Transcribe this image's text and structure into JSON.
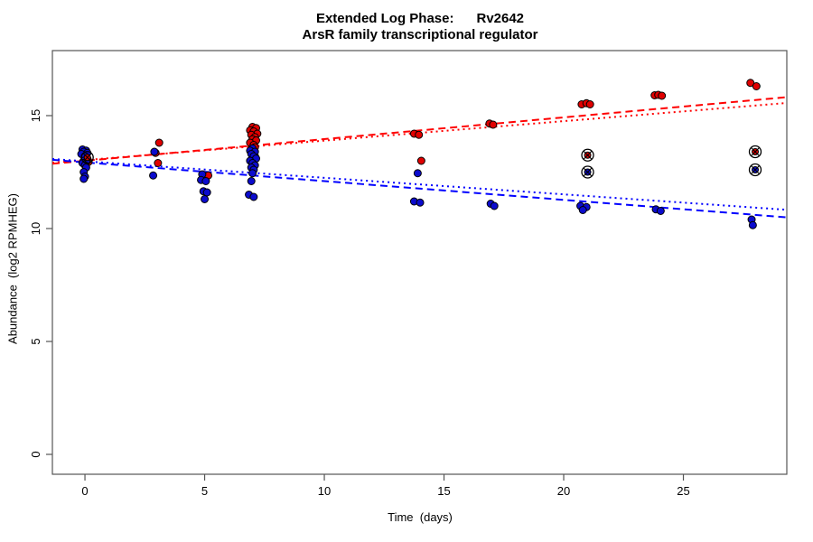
{
  "title": "Extended Log Phase:      Rv2642",
  "subtitle": "ArsR family transcriptional regulator",
  "chart_data": {
    "type": "scatter",
    "title": "Extended Log Phase:      Rv2642",
    "subtitle": "ArsR family transcriptional regulator",
    "xlabel": "Time  (days)",
    "ylabel": "Abundance  (log2 RPMHEG)",
    "xlim": [
      -1.36,
      29.32
    ],
    "ylim": [
      -0.88,
      17.88
    ],
    "x_ticks": [
      0,
      5,
      10,
      15,
      20,
      25
    ],
    "y_ticks": [
      0,
      5,
      10,
      15
    ],
    "grid": false,
    "legend": "none",
    "frame_color": "#555555",
    "series": [
      {
        "name": "red-condition",
        "color": "#e00000",
        "edge_color": "#000000",
        "points": [
          [
            0.05,
            13.1
          ],
          [
            0.15,
            12.95
          ],
          [
            3.1,
            13.8
          ],
          [
            2.95,
            13.35
          ],
          [
            3.05,
            12.9
          ],
          [
            5.15,
            12.35
          ],
          [
            7.0,
            14.5
          ],
          [
            7.15,
            14.45
          ],
          [
            6.9,
            14.35
          ],
          [
            7.05,
            14.3
          ],
          [
            7.2,
            14.2
          ],
          [
            6.95,
            14.15
          ],
          [
            7.1,
            14.05
          ],
          [
            7.0,
            13.95
          ],
          [
            7.15,
            13.9
          ],
          [
            6.9,
            13.8
          ],
          [
            7.05,
            13.7
          ],
          [
            7.1,
            13.6
          ],
          [
            6.95,
            13.5
          ],
          [
            7.05,
            13.4
          ],
          [
            7.0,
            13.3
          ],
          [
            7.1,
            13.2
          ],
          [
            13.75,
            14.2
          ],
          [
            13.95,
            14.15
          ],
          [
            14.05,
            13.0
          ],
          [
            16.9,
            14.65
          ],
          [
            17.05,
            14.6
          ],
          [
            20.75,
            15.5
          ],
          [
            20.95,
            15.55
          ],
          [
            21.1,
            15.5
          ],
          [
            23.8,
            15.9
          ],
          [
            23.95,
            15.92
          ],
          [
            24.1,
            15.88
          ],
          [
            27.8,
            16.45
          ],
          [
            28.05,
            16.3
          ]
        ]
      },
      {
        "name": "blue-condition",
        "color": "#0b0bcd",
        "edge_color": "#000000",
        "points": [
          [
            -0.1,
            13.5
          ],
          [
            0.05,
            13.45
          ],
          [
            -0.05,
            13.4
          ],
          [
            0.1,
            13.35
          ],
          [
            -0.15,
            13.3
          ],
          [
            0.0,
            13.2
          ],
          [
            0.1,
            13.1
          ],
          [
            -0.05,
            13.0
          ],
          [
            0.05,
            12.95
          ],
          [
            -0.1,
            12.9
          ],
          [
            0.0,
            12.8
          ],
          [
            0.05,
            12.7
          ],
          [
            -0.05,
            12.5
          ],
          [
            0.0,
            12.3
          ],
          [
            -0.05,
            12.2
          ],
          [
            2.9,
            13.4
          ],
          [
            2.85,
            12.35
          ],
          [
            4.9,
            12.4
          ],
          [
            4.85,
            12.15
          ],
          [
            5.05,
            12.1
          ],
          [
            4.95,
            11.65
          ],
          [
            5.1,
            11.6
          ],
          [
            5.0,
            11.3
          ],
          [
            7.0,
            13.55
          ],
          [
            6.9,
            13.45
          ],
          [
            7.1,
            13.4
          ],
          [
            6.95,
            13.3
          ],
          [
            7.05,
            13.2
          ],
          [
            7.15,
            13.1
          ],
          [
            6.9,
            13.0
          ],
          [
            7.0,
            12.9
          ],
          [
            7.1,
            12.8
          ],
          [
            6.95,
            12.7
          ],
          [
            7.05,
            12.6
          ],
          [
            7.0,
            12.45
          ],
          [
            6.95,
            12.1
          ],
          [
            6.85,
            11.5
          ],
          [
            7.05,
            11.4
          ],
          [
            13.9,
            12.45
          ],
          [
            13.75,
            11.2
          ],
          [
            14.0,
            11.15
          ],
          [
            16.95,
            11.1
          ],
          [
            17.1,
            11.0
          ],
          [
            20.7,
            11.0
          ],
          [
            20.95,
            10.95
          ],
          [
            20.8,
            10.82
          ],
          [
            23.85,
            10.85
          ],
          [
            24.05,
            10.78
          ],
          [
            27.85,
            10.4
          ],
          [
            27.9,
            10.15
          ]
        ]
      }
    ],
    "outliers_circled": [
      {
        "series": "red-condition",
        "x": 0.1,
        "y": 13.15
      },
      {
        "series": "red-condition",
        "x": 21.0,
        "y": 13.25
      },
      {
        "series": "blue-condition",
        "x": 21.0,
        "y": 12.5
      },
      {
        "series": "red-condition",
        "x": 28.0,
        "y": 13.4
      },
      {
        "series": "blue-condition",
        "x": 28.0,
        "y": 12.6
      }
    ],
    "trend_lines": [
      {
        "name": "red-fit-dashed",
        "color": "#ff0000",
        "style": "dashed",
        "intercept": 13.0,
        "slope": 0.0961
      },
      {
        "name": "red-fit-dotted",
        "color": "#ff0000",
        "style": "dotted",
        "intercept": 13.03,
        "slope": 0.0863
      },
      {
        "name": "blue-fit-dashed",
        "color": "#0000ff",
        "style": "dashed",
        "intercept": 12.93,
        "slope": -0.083
      },
      {
        "name": "blue-fit-dotted",
        "color": "#0000ff",
        "style": "dotted",
        "intercept": 12.98,
        "slope": -0.0733
      }
    ]
  }
}
